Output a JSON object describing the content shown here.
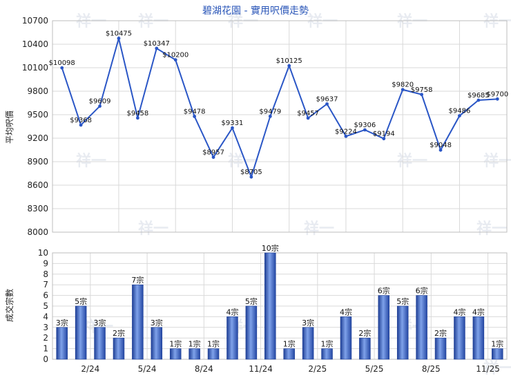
{
  "chart_data": [
    {
      "type": "line",
      "title": "碧湖花園 - 實用呎價走勢",
      "ylabel": "平均呎價",
      "ylim": [
        8000,
        10700
      ],
      "yticks": [
        8000,
        8300,
        8600,
        8900,
        9200,
        9500,
        9800,
        10100,
        10400,
        10700
      ],
      "grid": true,
      "series": [
        {
          "color": "#2a56c6",
          "values": [
            10098,
            9368,
            9609,
            10475,
            9458,
            10347,
            10200,
            9478,
            8957,
            9331,
            8705,
            9479,
            10125,
            9457,
            9637,
            9224,
            9306,
            9194,
            9820,
            9758,
            9048,
            9486,
            9685,
            9700
          ],
          "labels": [
            "$10098",
            "$9368",
            "$9609",
            "$10475",
            "$9458",
            "$10347",
            "$10200",
            "$9478",
            "$8957",
            "$9331",
            "$8705",
            "$9479",
            "$10125",
            "$9457",
            "$9637",
            "$9224",
            "$9306",
            "$9194",
            "$9820",
            "$9758",
            "$9048",
            "$9486",
            "$9685",
            "$9700"
          ]
        }
      ]
    },
    {
      "type": "bar",
      "ylabel": "成交宗數",
      "ylim": [
        0,
        10
      ],
      "yticks": [
        0,
        1,
        2,
        3,
        4,
        5,
        6,
        7,
        8,
        9,
        10
      ],
      "grid": true,
      "xtick_labels": [
        "2/24",
        "5/24",
        "8/24",
        "11/24",
        "2/25",
        "5/25",
        "8/25",
        "11/25"
      ],
      "series": [
        {
          "color": "#3a67c8",
          "values": [
            3,
            5,
            3,
            2,
            7,
            3,
            1,
            1,
            1,
            4,
            5,
            10,
            1,
            3,
            1,
            4,
            2,
            6,
            5,
            6,
            2,
            4,
            4,
            1
          ],
          "labels": [
            "3宗",
            "5宗",
            "3宗",
            "2宗",
            "7宗",
            "3宗",
            "1宗",
            "1宗",
            "1宗",
            "4宗",
            "5宗",
            "10宗",
            "1宗",
            "3宗",
            "1宗",
            "4宗",
            "2宗",
            "6宗",
            "5宗",
            "6宗",
            "2宗",
            "4宗",
            "4宗",
            "1宗"
          ]
        }
      ]
    }
  ],
  "watermark": "祥一"
}
